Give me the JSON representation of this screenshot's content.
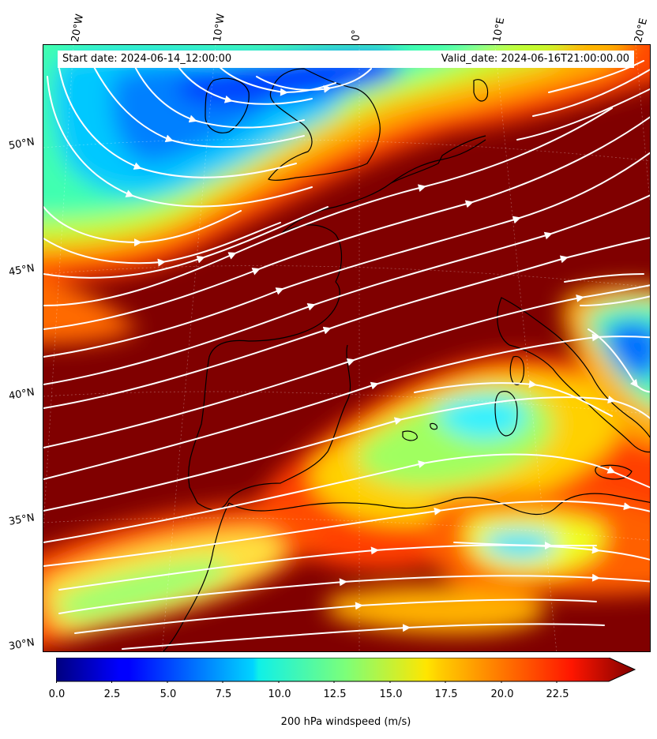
{
  "header": {
    "start_date": "Start date: 2024-06-14_12:00:00",
    "valid_date": "Valid_date: 2024-06-16T21:00:00.00"
  },
  "lon_labels": [
    "20°W",
    "10°W",
    "0°",
    "10°E",
    "20°E"
  ],
  "lat_labels": [
    "50°N",
    "45°N",
    "40°N",
    "35°N",
    "30°N"
  ],
  "colorbar": {
    "label": "200 hPa windspeed (m/s)",
    "ticks": [
      "0.0",
      "2.5",
      "5.0",
      "7.5",
      "10.0",
      "12.5",
      "15.0",
      "17.5",
      "20.0",
      "22.5"
    ],
    "min": 0,
    "max": 25,
    "extend": "max",
    "colormap": "jet"
  },
  "colors": {
    "max_wind": "#800000",
    "streamline": "#ffffff",
    "coast": "#000000"
  }
}
